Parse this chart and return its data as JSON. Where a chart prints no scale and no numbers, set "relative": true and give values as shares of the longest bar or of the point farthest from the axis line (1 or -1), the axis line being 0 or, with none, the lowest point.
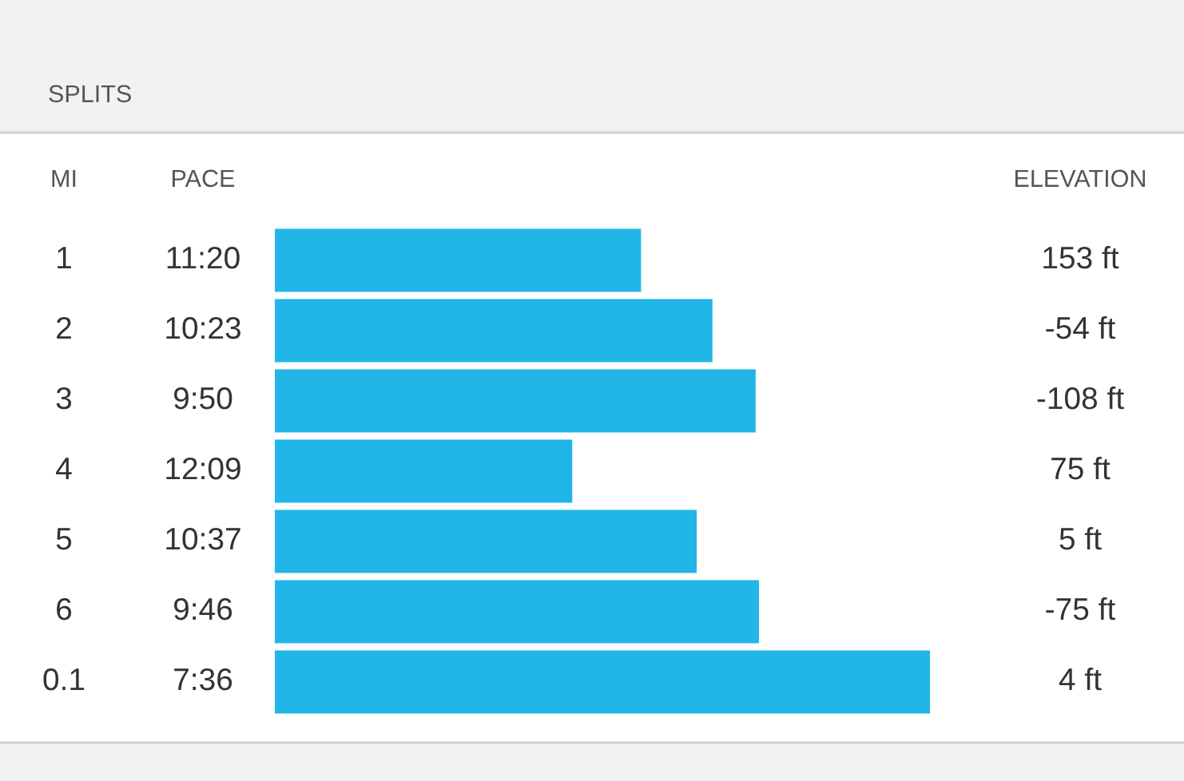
{
  "chart_data": {
    "type": "bar",
    "orientation": "horizontal",
    "relative": true,
    "title": "SPLITS",
    "categories": [
      "1",
      "2",
      "3",
      "4",
      "5",
      "6",
      "0.1"
    ],
    "values": [
      0.559,
      0.668,
      0.734,
      0.454,
      0.644,
      0.739,
      1
    ],
    "color": "#22b5e8",
    "annotations": [
      "MI",
      "PACE",
      "ELEVATION",
      "11:20",
      "10:23",
      "9:50",
      "12:09",
      "10:37",
      "9:46",
      "7:36",
      "153 ft",
      "-54 ft",
      "-108 ft",
      "75 ft",
      "5 ft",
      "-75 ft",
      "4 ft"
    ]
  }
}
